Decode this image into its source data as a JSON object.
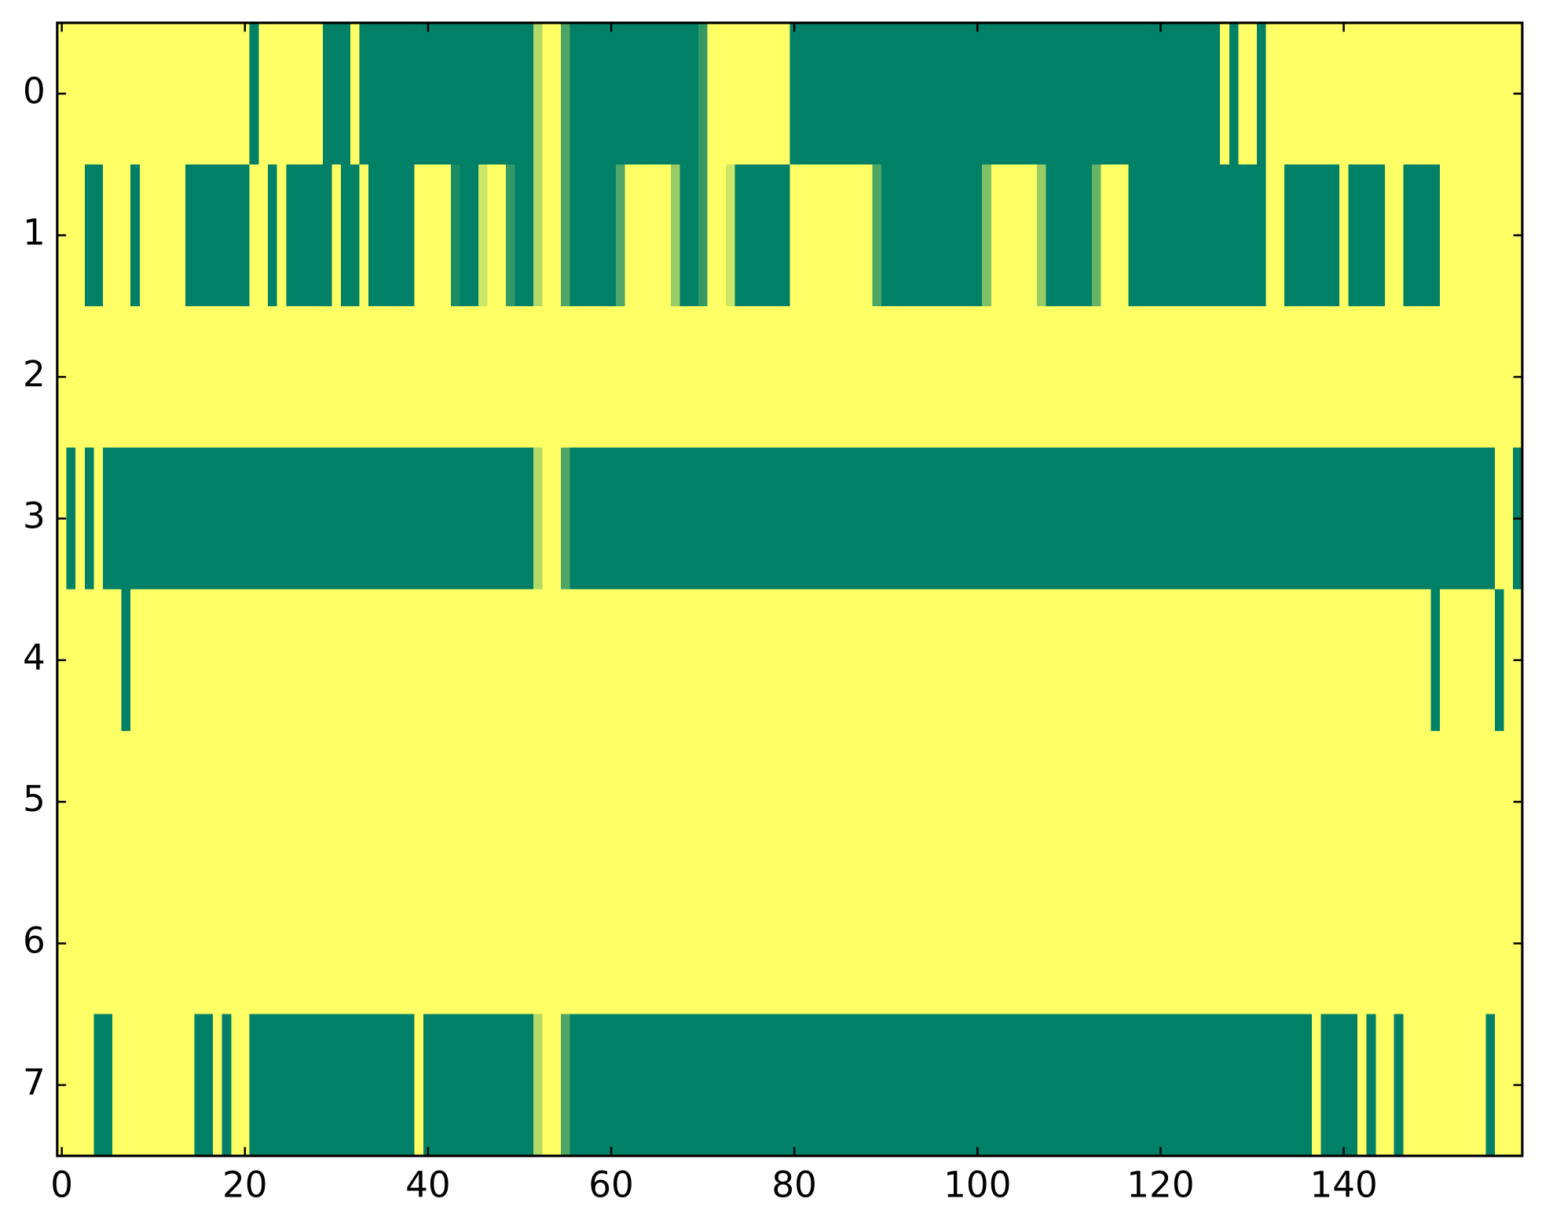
{
  "chart_data": {
    "type": "heatmap",
    "z": [
      [
        1,
        1,
        1,
        1,
        1,
        1,
        1,
        1,
        1,
        1,
        1,
        1,
        1,
        1,
        1,
        1,
        1,
        1,
        1,
        1,
        1,
        0,
        1,
        1,
        1,
        1,
        1,
        1,
        1,
        0,
        0,
        0,
        1,
        0,
        0,
        0,
        0,
        0,
        0,
        0,
        0,
        0,
        0,
        0,
        0,
        0,
        0,
        0,
        0,
        0,
        0,
        0,
        0.7,
        1,
        1,
        0.3,
        0,
        0,
        0,
        0,
        0,
        0,
        0,
        0,
        0,
        0,
        0,
        0,
        0,
        0,
        0.2,
        1,
        1,
        1,
        1,
        1,
        1,
        1,
        1,
        1,
        0,
        0,
        0,
        0,
        0,
        0,
        0,
        0,
        0,
        0,
        0,
        0,
        0,
        0,
        0,
        0,
        0,
        0,
        0,
        0,
        0,
        0,
        0,
        0,
        0,
        0,
        0,
        0,
        0,
        0,
        0,
        0,
        0,
        0,
        0,
        0,
        0,
        0,
        0,
        0,
        0,
        0,
        0,
        0,
        0,
        0,
        0,
        1,
        0,
        1,
        1,
        0,
        1,
        1,
        1,
        1,
        1,
        1,
        1,
        1,
        1,
        1,
        1,
        1,
        1,
        1,
        1,
        1,
        1,
        1,
        1,
        1,
        1,
        1,
        1,
        1,
        1,
        1,
        1,
        1
      ],
      [
        1,
        1,
        1,
        0,
        0,
        1,
        1,
        1,
        0,
        1,
        1,
        1,
        1,
        1,
        0,
        0,
        0,
        0,
        0,
        0,
        0,
        1,
        1,
        0,
        1,
        0,
        0,
        0,
        0,
        0,
        1,
        0,
        0,
        1,
        0,
        0,
        0,
        0,
        0,
        1,
        1,
        1,
        1,
        0.1,
        0,
        0,
        0.8,
        1,
        1,
        0.2,
        0,
        0,
        0.7,
        1,
        1,
        0.3,
        0,
        0,
        0,
        0,
        0,
        0.3,
        1,
        1,
        1,
        1,
        1,
        0.6,
        0,
        0,
        0.2,
        1,
        1,
        0.8,
        0,
        0,
        0,
        0,
        0,
        0,
        1,
        1,
        1,
        1,
        1,
        1,
        1,
        1,
        1,
        0.3,
        0,
        0,
        0,
        0,
        0,
        0,
        0,
        0,
        0,
        0,
        0,
        0.5,
        1,
        1,
        1,
        1,
        1,
        0.6,
        0,
        0,
        0,
        0,
        0,
        0.4,
        1,
        1,
        1,
        0,
        0,
        0,
        0,
        0,
        0,
        0,
        0,
        0,
        0,
        0,
        0,
        0,
        0,
        0,
        1,
        1,
        0,
        0,
        0,
        0,
        0,
        0,
        1,
        0,
        0,
        0,
        0,
        1,
        1,
        0,
        0,
        0,
        0,
        1,
        1,
        1,
        1,
        1,
        1,
        1,
        1,
        1
      ],
      [
        1,
        1,
        1,
        1,
        1,
        1,
        1,
        1,
        1,
        1,
        1,
        1,
        1,
        1,
        1,
        1,
        1,
        1,
        1,
        1,
        1,
        1,
        1,
        1,
        1,
        1,
        1,
        1,
        1,
        1,
        1,
        1,
        1,
        1,
        1,
        1,
        1,
        1,
        1,
        1,
        1,
        1,
        1,
        1,
        1,
        1,
        1,
        1,
        1,
        1,
        1,
        1,
        1,
        1,
        1,
        1,
        1,
        1,
        1,
        1,
        1,
        1,
        1,
        1,
        1,
        1,
        1,
        1,
        1,
        1,
        1,
        1,
        1,
        1,
        1,
        1,
        1,
        1,
        1,
        1,
        1,
        1,
        1,
        1,
        1,
        1,
        1,
        1,
        1,
        1,
        1,
        1,
        1,
        1,
        1,
        1,
        1,
        1,
        1,
        1,
        1,
        1,
        1,
        1,
        1,
        1,
        1,
        1,
        1,
        1,
        1,
        1,
        1,
        1,
        1,
        1,
        1,
        1,
        1,
        1,
        1,
        1,
        1,
        1,
        1,
        1,
        1,
        1,
        1,
        1,
        1,
        1,
        1,
        1,
        1,
        1,
        1,
        1,
        1,
        1,
        1,
        1,
        1,
        1,
        1,
        1,
        1,
        1,
        1,
        1,
        1,
        1,
        1,
        1,
        1,
        1,
        1,
        1,
        1,
        1
      ],
      [
        1,
        0,
        1,
        0,
        1,
        0,
        0,
        0,
        0,
        0,
        0,
        0,
        0,
        0,
        0,
        0,
        0,
        0,
        0,
        0,
        0,
        0,
        0,
        0,
        0,
        0,
        0,
        0,
        0,
        0,
        0,
        0,
        0,
        0,
        0,
        0,
        0,
        0,
        0,
        0,
        0,
        0,
        0,
        0,
        0,
        0,
        0,
        0,
        0,
        0,
        0,
        0,
        0.7,
        1,
        1,
        0.3,
        0,
        0,
        0,
        0,
        0,
        0,
        0,
        0,
        0,
        0,
        0,
        0,
        0,
        0,
        0,
        0,
        0,
        0,
        0,
        0,
        0,
        0,
        0,
        0,
        0,
        0,
        0,
        0,
        0,
        0,
        0,
        0,
        0,
        0,
        0,
        0,
        0,
        0,
        0,
        0,
        0,
        0,
        0,
        0,
        0,
        0,
        0,
        0,
        0,
        0,
        0,
        0,
        0,
        0,
        0,
        0,
        0,
        0,
        0,
        0,
        0,
        0,
        0,
        0,
        0,
        0,
        0,
        0,
        0,
        0,
        0,
        0,
        0,
        0,
        0,
        0,
        0,
        0,
        0,
        0,
        0,
        0,
        0,
        0,
        0,
        0,
        0,
        0,
        0,
        0,
        0,
        0,
        0,
        0,
        0,
        0,
        0,
        0,
        0,
        0,
        0,
        1,
        1,
        0
      ],
      [
        1,
        1,
        1,
        1,
        1,
        1,
        1,
        0,
        1,
        1,
        1,
        1,
        1,
        1,
        1,
        1,
        1,
        1,
        1,
        1,
        1,
        1,
        1,
        1,
        1,
        1,
        1,
        1,
        1,
        1,
        1,
        1,
        1,
        1,
        1,
        1,
        1,
        1,
        1,
        1,
        1,
        1,
        1,
        1,
        1,
        1,
        1,
        1,
        1,
        1,
        1,
        1,
        1,
        1,
        1,
        1,
        1,
        1,
        1,
        1,
        1,
        1,
        1,
        1,
        1,
        1,
        1,
        1,
        1,
        1,
        1,
        1,
        1,
        1,
        1,
        1,
        1,
        1,
        1,
        1,
        1,
        1,
        1,
        1,
        1,
        1,
        1,
        1,
        1,
        1,
        1,
        1,
        1,
        1,
        1,
        1,
        1,
        1,
        1,
        1,
        1,
        1,
        1,
        1,
        1,
        1,
        1,
        1,
        1,
        1,
        1,
        1,
        1,
        1,
        1,
        1,
        1,
        1,
        1,
        1,
        1,
        1,
        1,
        1,
        1,
        1,
        1,
        1,
        1,
        1,
        1,
        1,
        1,
        1,
        1,
        1,
        1,
        1,
        1,
        1,
        1,
        1,
        1,
        1,
        1,
        1,
        1,
        1,
        1,
        1,
        0,
        1,
        1,
        1,
        1,
        1,
        1,
        0,
        1,
        1
      ],
      [
        1,
        1,
        1,
        1,
        1,
        1,
        1,
        1,
        1,
        1,
        1,
        1,
        1,
        1,
        1,
        1,
        1,
        1,
        1,
        1,
        1,
        1,
        1,
        1,
        1,
        1,
        1,
        1,
        1,
        1,
        1,
        1,
        1,
        1,
        1,
        1,
        1,
        1,
        1,
        1,
        1,
        1,
        1,
        1,
        1,
        1,
        1,
        1,
        1,
        1,
        1,
        1,
        1,
        1,
        1,
        1,
        1,
        1,
        1,
        1,
        1,
        1,
        1,
        1,
        1,
        1,
        1,
        1,
        1,
        1,
        1,
        1,
        1,
        1,
        1,
        1,
        1,
        1,
        1,
        1,
        1,
        1,
        1,
        1,
        1,
        1,
        1,
        1,
        1,
        1,
        1,
        1,
        1,
        1,
        1,
        1,
        1,
        1,
        1,
        1,
        1,
        1,
        1,
        1,
        1,
        1,
        1,
        1,
        1,
        1,
        1,
        1,
        1,
        1,
        1,
        1,
        1,
        1,
        1,
        1,
        1,
        1,
        1,
        1,
        1,
        1,
        1,
        1,
        1,
        1,
        1,
        1,
        1,
        1,
        1,
        1,
        1,
        1,
        1,
        1,
        1,
        1,
        1,
        1,
        1,
        1,
        1,
        1,
        1,
        1,
        1,
        1,
        1,
        1,
        1,
        1,
        1,
        1,
        1,
        1
      ],
      [
        1,
        1,
        1,
        1,
        1,
        1,
        1,
        1,
        1,
        1,
        1,
        1,
        1,
        1,
        1,
        1,
        1,
        1,
        1,
        1,
        1,
        1,
        1,
        1,
        1,
        1,
        1,
        1,
        1,
        1,
        1,
        1,
        1,
        1,
        1,
        1,
        1,
        1,
        1,
        1,
        1,
        1,
        1,
        1,
        1,
        1,
        1,
        1,
        1,
        1,
        1,
        1,
        1,
        1,
        1,
        1,
        1,
        1,
        1,
        1,
        1,
        1,
        1,
        1,
        1,
        1,
        1,
        1,
        1,
        1,
        1,
        1,
        1,
        1,
        1,
        1,
        1,
        1,
        1,
        1,
        1,
        1,
        1,
        1,
        1,
        1,
        1,
        1,
        1,
        1,
        1,
        1,
        1,
        1,
        1,
        1,
        1,
        1,
        1,
        1,
        1,
        1,
        1,
        1,
        1,
        1,
        1,
        1,
        1,
        1,
        1,
        1,
        1,
        1,
        1,
        1,
        1,
        1,
        1,
        1,
        1,
        1,
        1,
        1,
        1,
        1,
        1,
        1,
        1,
        1,
        1,
        1,
        1,
        1,
        1,
        1,
        1,
        1,
        1,
        1,
        1,
        1,
        1,
        1,
        1,
        1,
        1,
        1,
        1,
        1,
        1,
        1,
        1,
        1,
        1,
        1,
        1,
        1,
        1,
        1
      ],
      [
        1,
        1,
        1,
        1,
        0,
        0,
        1,
        1,
        1,
        1,
        1,
        1,
        1,
        1,
        1,
        0,
        0,
        1,
        0,
        1,
        1,
        0,
        0,
        0,
        0,
        0,
        0,
        0,
        0,
        0,
        0,
        0,
        0,
        0,
        0,
        0,
        0,
        0,
        0,
        1,
        0,
        0,
        0,
        0,
        0,
        0,
        0,
        0,
        0,
        0,
        0,
        0,
        0.7,
        1,
        1,
        0.3,
        0,
        0,
        0,
        0,
        0,
        0,
        0,
        0,
        0,
        0,
        0,
        0,
        0,
        0,
        0,
        0,
        0,
        0,
        0,
        0,
        0,
        0,
        0,
        0,
        0,
        0,
        0,
        0,
        0,
        0,
        0,
        0,
        0,
        0,
        0,
        0,
        0,
        0,
        0,
        0,
        0,
        0,
        0,
        0,
        0,
        0,
        0,
        0,
        0,
        0,
        0,
        0,
        0,
        0,
        0,
        0,
        0,
        0,
        0,
        0,
        0,
        0,
        0,
        0,
        0,
        0,
        0,
        0,
        0,
        0,
        0,
        0,
        0,
        0,
        0,
        0,
        0,
        0,
        0,
        0,
        0,
        1,
        0,
        0,
        0,
        0,
        1,
        0,
        1,
        1,
        0,
        1,
        1,
        1,
        1,
        1,
        1,
        1,
        1,
        1,
        0,
        1,
        1,
        1
      ]
    ],
    "xlim": [
      -0.5,
      159.5
    ],
    "ylim": [
      7.5,
      -0.5
    ],
    "xticks": [
      0,
      20,
      40,
      60,
      80,
      100,
      120,
      140
    ],
    "yticks": [
      0,
      1,
      2,
      3,
      4,
      5,
      6,
      7
    ],
    "colormap": [
      "#008066",
      "#ffff66"
    ],
    "clim": [
      0,
      1
    ]
  }
}
